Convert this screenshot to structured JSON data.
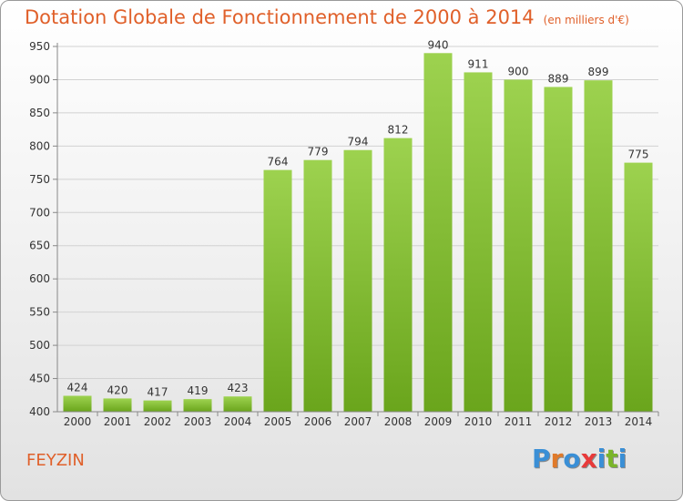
{
  "title": "Dotation Globale de Fonctionnement de 2000 à 2014",
  "unit": "(en milliers d'€)",
  "city": "FEYZIN",
  "brand": {
    "text": "Proxiti",
    "colors": [
      "#3a8fd6",
      "#e07a2a",
      "#3a8fd6",
      "#e83a3a",
      "#3a8fd6",
      "#7ab52a",
      "#3a8fd6"
    ]
  },
  "colors": {
    "title": "#e0602a",
    "bar_top": "#9dd24f",
    "bar_bottom": "#6aa51c",
    "grid": "#d2d2d2",
    "axis": "#888888"
  },
  "chart_data": {
    "type": "bar",
    "title": "Dotation Globale de Fonctionnement de 2000 à 2014",
    "categories": [
      "2000",
      "2001",
      "2002",
      "2003",
      "2004",
      "2005",
      "2006",
      "2007",
      "2008",
      "2009",
      "2010",
      "2011",
      "2012",
      "2013",
      "2014"
    ],
    "values": [
      424,
      420,
      417,
      419,
      423,
      764,
      779,
      794,
      812,
      940,
      911,
      900,
      889,
      899,
      775
    ],
    "ylim": [
      400,
      950
    ],
    "yticks": [
      400,
      450,
      500,
      550,
      600,
      650,
      700,
      750,
      800,
      850,
      900,
      950
    ],
    "grid": true
  }
}
